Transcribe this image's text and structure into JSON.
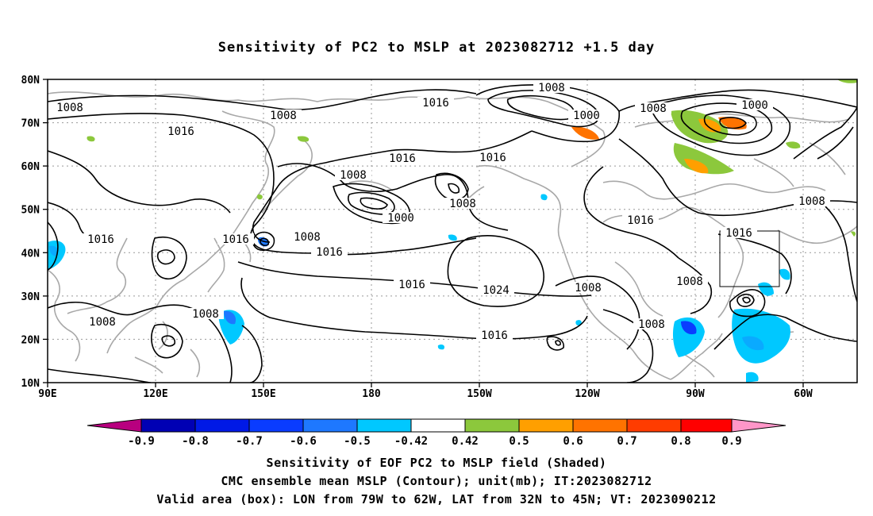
{
  "title": "Sensitivity of PC2 to MSLP at 2023082712 +1.5 day",
  "map": {
    "lat_labels": [
      "80N",
      "70N",
      "60N",
      "50N",
      "40N",
      "30N",
      "20N",
      "10N"
    ],
    "lon_labels": [
      "90E",
      "120E",
      "150E",
      "180",
      "150W",
      "120W",
      "90W",
      "60W"
    ],
    "contour_labels": [
      "1008",
      "1016",
      "1000",
      "1024"
    ],
    "valid_box": {
      "lon_min": -79,
      "lon_max": -62,
      "lat_min": 32,
      "lat_max": 45
    }
  },
  "colorbar": {
    "labels": [
      "-0.9",
      "-0.8",
      "-0.7",
      "-0.6",
      "-0.5",
      "-0.42",
      "0.42",
      "0.5",
      "0.6",
      "0.7",
      "0.8",
      "0.9"
    ],
    "colors": [
      "#b8007f",
      "#0000b4",
      "#0019e6",
      "#0a3cff",
      "#1e78ff",
      "#0aaaff",
      "#00c8ff",
      "#ffffff",
      "#8cc83c",
      "#ff9f00",
      "#ff7300",
      "#ff3c00",
      "#ff0000",
      "#ff96c8"
    ]
  },
  "footer": {
    "line1": "Sensitivity of EOF PC2 to MSLP field (Shaded)",
    "line2": "CMC ensemble mean MSLP (Contour); unit(mb); IT:2023082712",
    "line3": "Valid area (box): LON from 79W to 62W, LAT from 32N to 45N; VT: 2023090212"
  }
}
